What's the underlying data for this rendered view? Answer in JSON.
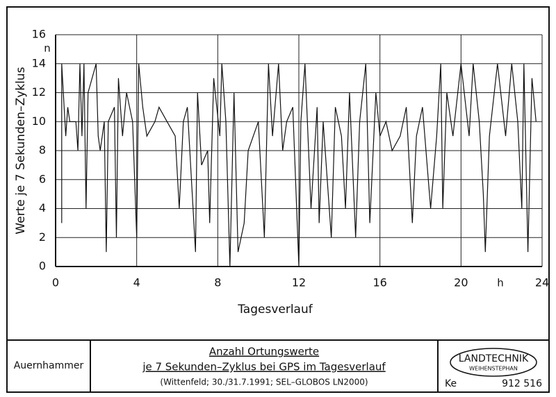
{
  "chart_data": {
    "type": "line",
    "y_label": "Werte je 7 Sekunden–Zyklus",
    "x_label": "Tagesverlauf",
    "y_unit": "n",
    "x_unit": "h",
    "x": [
      0.3,
      0.3,
      0.5,
      0.6,
      0.7,
      1.0,
      1.1,
      1.2,
      1.3,
      1.4,
      1.5,
      1.6,
      2.0,
      2.1,
      2.2,
      2.4,
      2.5,
      2.6,
      2.9,
      3.0,
      3.1,
      3.3,
      3.5,
      3.8,
      4.0,
      4.1,
      4.3,
      4.5,
      4.9,
      5.1,
      5.5,
      5.9,
      6.1,
      6.3,
      6.5,
      6.9,
      7.0,
      7.2,
      7.5,
      7.6,
      7.8,
      8.1,
      8.2,
      8.4,
      8.6,
      8.8,
      9.0,
      9.3,
      9.5,
      10.0,
      10.3,
      10.5,
      10.7,
      11.0,
      11.2,
      11.4,
      11.7,
      12.0,
      12.1,
      12.3,
      12.6,
      12.9,
      13.0,
      13.2,
      13.6,
      13.8,
      14.1,
      14.3,
      14.5,
      14.8,
      15.0,
      15.3,
      15.5,
      15.8,
      16.0,
      16.3,
      16.6,
      17.0,
      17.3,
      17.6,
      17.8,
      18.1,
      18.5,
      18.8,
      19.0,
      19.1,
      19.3,
      19.6,
      20.0,
      20.4,
      20.6,
      20.9,
      21.1,
      21.2,
      21.4,
      21.8,
      22.2,
      22.5,
      22.8,
      23.0,
      23.1,
      23.3,
      23.5,
      23.7
    ],
    "series": [
      {
        "color": "#111111",
        "values": [
          3,
          14,
          9,
          11,
          10,
          10,
          8,
          14,
          9,
          14,
          4,
          12,
          14,
          9,
          8,
          10,
          1,
          10,
          11,
          2,
          13,
          9,
          12,
          10,
          2,
          14,
          11,
          9,
          10,
          11,
          10,
          9,
          4,
          10,
          11,
          1,
          12,
          7,
          8,
          3,
          13,
          9,
          14,
          10,
          0,
          12,
          1,
          3,
          8,
          10,
          2,
          14,
          9,
          14,
          8,
          10,
          11,
          0,
          10,
          14,
          4,
          11,
          3,
          10,
          2,
          11,
          9,
          4,
          12,
          2,
          10,
          14,
          3,
          12,
          9,
          10,
          8,
          9,
          11,
          3,
          9,
          11,
          4,
          9,
          14,
          4,
          12,
          9,
          14,
          9,
          14,
          10,
          5,
          1,
          9,
          14,
          9,
          14,
          10,
          4,
          14,
          1,
          13,
          10
        ]
      }
    ],
    "xlim": [
      0,
      24
    ],
    "xticks": [
      0,
      4,
      8,
      12,
      16,
      20,
      24
    ],
    "ylim": [
      0,
      16
    ],
    "yticks": [
      0,
      2,
      4,
      6,
      8,
      10,
      12,
      14,
      16
    ],
    "grid": true
  },
  "footer": {
    "author": "Auernhammer",
    "title_line1": "Anzahl Ortungswerte",
    "title_line2": "je 7 Sekunden–Zyklus bei GPS im Tagesverlauf",
    "subtitle": "(Wittenfeld; 30./31.7.1991; SEL–GLOBOS LN2000)",
    "logo_line1": "LANDTECHNIK",
    "logo_line2": "WEIHENSTEPHAN",
    "code": "Ke",
    "number": "912 516"
  }
}
